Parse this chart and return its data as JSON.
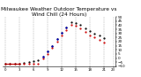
{
  "title": "Milwaukee Weather Outdoor Temperature vs Wind Chill (24 Hours)",
  "title_fontsize": 4.2,
  "bg_color": "#ffffff",
  "grid_color": "#aaaaaa",
  "temp_color": "#000000",
  "wind_chill_color": "#cc0000",
  "blue_color": "#0000cc",
  "marker_size": 1.2,
  "ylim": [
    -10,
    50
  ],
  "xlim": [
    -0.5,
    23.5
  ],
  "yticks": [
    -10,
    -5,
    0,
    5,
    10,
    15,
    20,
    25,
    30,
    35,
    40,
    45,
    50
  ],
  "vgrid_positions": [
    0,
    3,
    6,
    9,
    12,
    15,
    18,
    21,
    23
  ],
  "xtick_positions": [
    0,
    3,
    6,
    9,
    12,
    15,
    18,
    21,
    23
  ],
  "xtick_labels": [
    "0",
    "3",
    "6",
    "9",
    "12",
    "15",
    "18",
    "21",
    "23"
  ],
  "temp_hours": [
    0,
    1,
    2,
    3,
    4,
    5,
    6,
    7,
    8,
    9,
    10,
    11,
    12,
    13,
    14,
    15,
    16,
    17,
    18,
    19,
    20,
    21
  ],
  "temp_vals": [
    -7,
    -7,
    -7,
    -7,
    -6,
    -5,
    -4,
    -3,
    2,
    8,
    15,
    23,
    31,
    37,
    44,
    43,
    40,
    36,
    33,
    30,
    27,
    24
  ],
  "wc_hours": [
    0,
    1,
    2,
    3,
    4,
    5,
    6,
    7,
    8,
    9,
    10,
    11,
    12,
    13,
    14,
    15,
    16,
    17,
    18,
    19,
    20,
    21
  ],
  "wc_vals": [
    -7,
    -7,
    -7,
    -7,
    -7,
    -7,
    -7,
    -7,
    0,
    5,
    12,
    20,
    28,
    34,
    40,
    39,
    36,
    32,
    28,
    25,
    22,
    19
  ],
  "wc_line_hours": [
    0,
    3
  ],
  "wc_line_vals": [
    -7,
    -7
  ],
  "blue_hours": [
    8,
    9,
    10,
    11,
    12,
    13
  ],
  "blue_vals": [
    2,
    8,
    15,
    23,
    31,
    37
  ]
}
